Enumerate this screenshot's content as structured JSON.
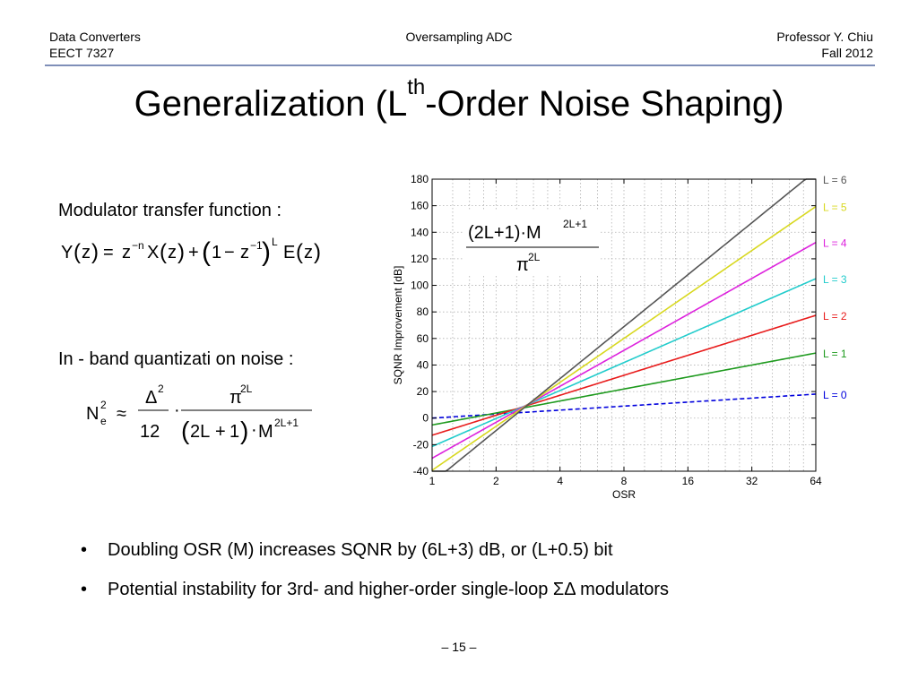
{
  "header": {
    "course": "Data Converters",
    "course_code": "EECT 7327",
    "topic": "Oversampling ADC",
    "instructor": "Professor Y. Chiu",
    "term": "Fall 2012"
  },
  "title": {
    "main": "Generalization (L",
    "superscript": "th",
    "rest": "-Order Noise Shaping)"
  },
  "equations": {
    "transfer_label": "Modulator  transfer  function :",
    "quant_label": "In - band quantizati on noise :"
  },
  "bullets": [
    "Doubling OSR (M) increases SQNR by (6L+3) dB, or (L+0.5) bit",
    "Potential instability for 3rd- and higher-order single-loop ΣΔ modulators"
  ],
  "page_number": "– 15 –",
  "chart_data": {
    "type": "line",
    "xlabel": "OSR",
    "ylabel": "SQNR Improvement [dB]",
    "x_scale": "log2",
    "x_ticks": [
      "1",
      "2",
      "4",
      "8",
      "16",
      "32",
      "64"
    ],
    "x_tick_values": [
      1,
      2,
      4,
      8,
      16,
      32,
      64
    ],
    "y_ticks": [
      "-40",
      "-20",
      "0",
      "20",
      "40",
      "60",
      "80",
      "100",
      "120",
      "140",
      "160",
      "180"
    ],
    "ylim": [
      -40,
      180
    ],
    "xlim": [
      1,
      64
    ],
    "grid": "on",
    "formula_annotation": {
      "numerator": "(2L+1)·M",
      "num_exp": "2L+1",
      "denominator": "π",
      "den_exp": "2L"
    },
    "series": [
      {
        "name": "L = 0",
        "L": 0,
        "color": "#0000dd",
        "dashed": true
      },
      {
        "name": "L = 1",
        "L": 1,
        "color": "#1e9a1e",
        "dashed": false
      },
      {
        "name": "L = 2",
        "L": 2,
        "color": "#e81c1c",
        "dashed": false
      },
      {
        "name": "L = 3",
        "L": 3,
        "color": "#22cccc",
        "dashed": false
      },
      {
        "name": "L = 4",
        "L": 4,
        "color": "#dd22dd",
        "dashed": false
      },
      {
        "name": "L = 5",
        "L": 5,
        "color": "#d8d820",
        "dashed": false
      },
      {
        "name": "L = 6",
        "L": 6,
        "color": "#555555",
        "dashed": false
      }
    ]
  }
}
